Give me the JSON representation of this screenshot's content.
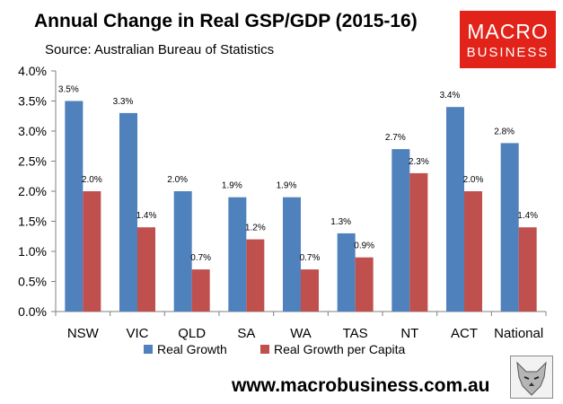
{
  "header": {
    "title": "Annual Change in Real GSP/GDP (2015-16)",
    "subtitle": "Source: Australian Bureau of Statistics"
  },
  "logo": {
    "line1": "MACRO",
    "line2": "BUSINESS",
    "color": "#e2231a"
  },
  "footer": {
    "url": "www.macrobusiness.com.au"
  },
  "chart_data": {
    "type": "bar",
    "title": "Annual Change in Real GSP/GDP (2015-16)",
    "categories": [
      "NSW",
      "VIC",
      "QLD",
      "SA",
      "WA",
      "TAS",
      "NT",
      "ACT",
      "National"
    ],
    "series": [
      {
        "name": "Real Growth",
        "color": "#4f81bd",
        "values": [
          3.5,
          3.3,
          2.0,
          1.9,
          1.9,
          1.3,
          2.7,
          3.4,
          2.8
        ],
        "labels": [
          "3.5%",
          "3.3%",
          "2.0%",
          "1.9%",
          "1.9%",
          "1.3%",
          "2.7%",
          "3.4%",
          "2.8%"
        ]
      },
      {
        "name": "Real Growth per Capita",
        "color": "#c0504d",
        "values": [
          2.0,
          1.4,
          0.7,
          1.2,
          0.7,
          0.9,
          2.3,
          2.0,
          1.4
        ],
        "labels": [
          "2.0%",
          "1.4%",
          "0.7%",
          "1.2%",
          "0.7%",
          "0.9%",
          "2.3%",
          "2.0%",
          "1.4%"
        ]
      }
    ],
    "xlabel": "",
    "ylabel": "",
    "ylim": [
      0,
      4.0
    ],
    "yticks": [
      0.0,
      0.5,
      1.0,
      1.5,
      2.0,
      2.5,
      3.0,
      3.5,
      4.0
    ],
    "ytick_labels": [
      "0.0%",
      "0.5%",
      "1.0%",
      "1.5%",
      "2.0%",
      "2.5%",
      "3.0%",
      "3.5%",
      "4.0%"
    ],
    "legend_position": "bottom",
    "grid": false
  }
}
